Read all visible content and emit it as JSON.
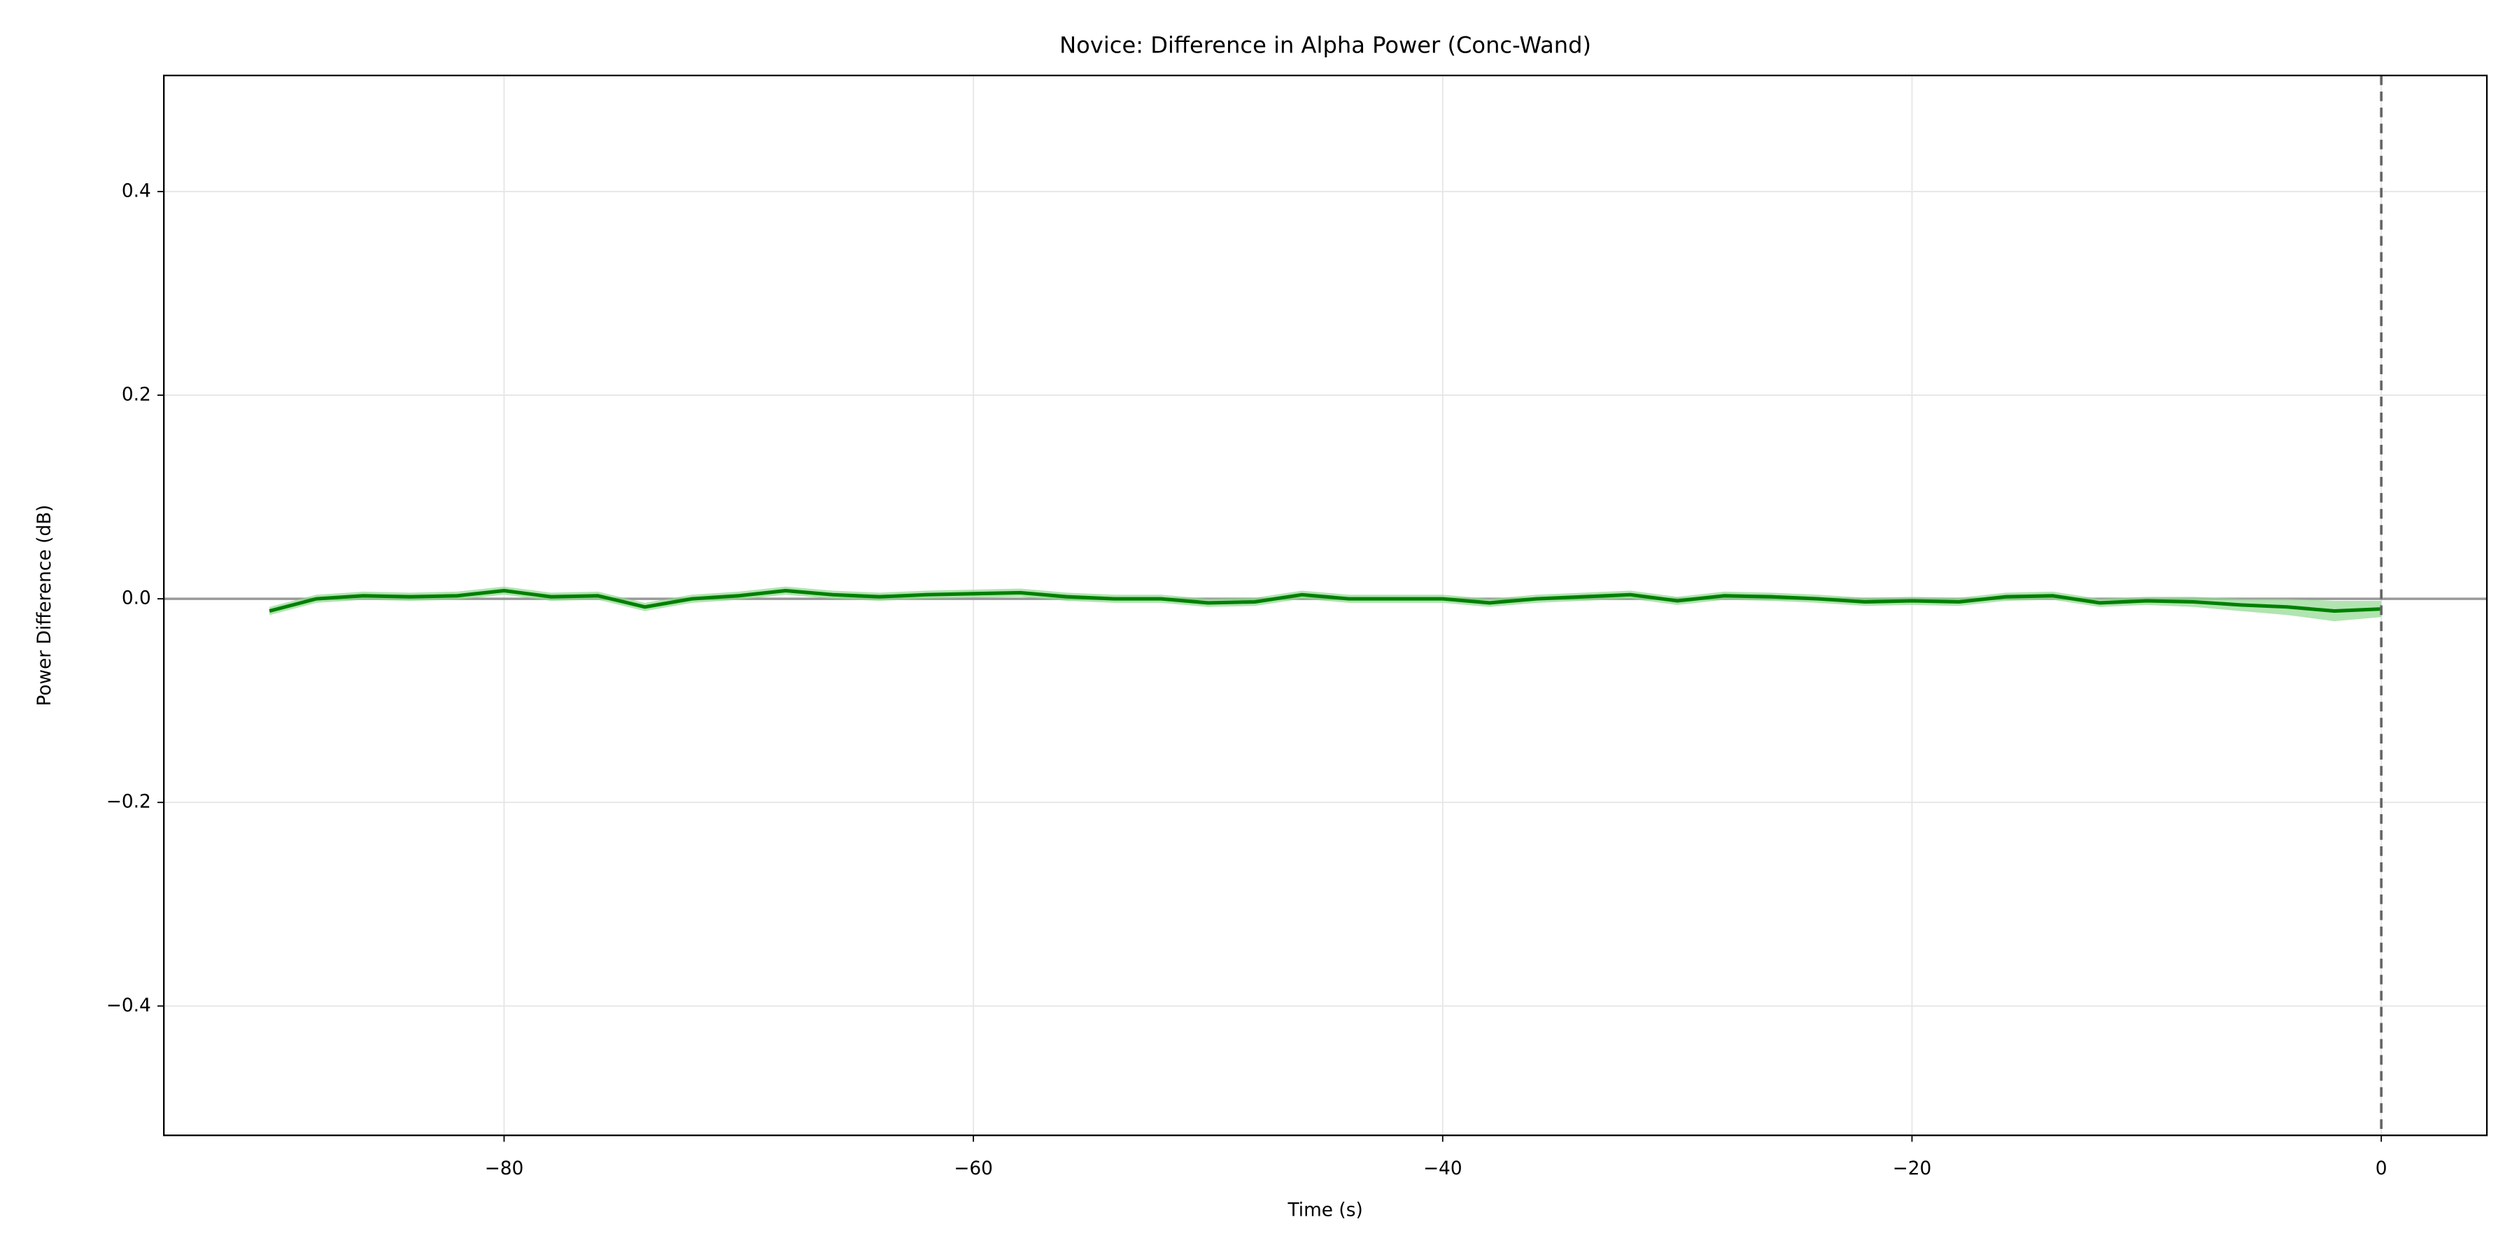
{
  "chart_data": {
    "type": "line",
    "title": "Novice: Difference in Alpha Power (Conc-Wand)",
    "xlabel": "Time (s)",
    "ylabel": "Power Difference (dB)",
    "x": [
      -90,
      -88,
      -86,
      -84,
      -82,
      -80,
      -78,
      -76,
      -74,
      -72,
      -70,
      -68,
      -66,
      -64,
      -62,
      -60,
      -58,
      -56,
      -54,
      -52,
      -50,
      -48,
      -46,
      -44,
      -42,
      -40,
      -38,
      -36,
      -34,
      -32,
      -30,
      -28,
      -26,
      -24,
      -22,
      -20,
      -18,
      -16,
      -14,
      -12,
      -10,
      -8,
      -6,
      -4,
      -2,
      0
    ],
    "series": [
      {
        "color": "#008000",
        "values": [
          -0.012,
          0.0,
          0.003,
          0.002,
          0.003,
          0.008,
          0.002,
          0.003,
          -0.008,
          0.0,
          0.003,
          0.008,
          0.004,
          0.002,
          0.004,
          0.005,
          0.006,
          0.002,
          0.0,
          0.0,
          -0.004,
          -0.003,
          0.004,
          0.0,
          0.0,
          0.0,
          -0.004,
          0.0,
          0.002,
          0.004,
          -0.002,
          0.003,
          0.002,
          0.0,
          -0.003,
          -0.002,
          -0.003,
          0.002,
          0.003,
          -0.004,
          -0.002,
          -0.003,
          -0.006,
          -0.008,
          -0.012,
          -0.01
        ],
        "band_color": "#90d890",
        "lower": [
          -0.016,
          -0.004,
          -0.001,
          -0.002,
          -0.001,
          0.004,
          -0.002,
          -0.001,
          -0.012,
          -0.004,
          -0.001,
          0.004,
          0.0,
          -0.002,
          0.0,
          0.001,
          0.002,
          -0.002,
          -0.004,
          -0.004,
          -0.008,
          -0.007,
          0.0,
          -0.004,
          -0.004,
          -0.004,
          -0.008,
          -0.004,
          -0.002,
          0.0,
          -0.006,
          -0.001,
          -0.002,
          -0.004,
          -0.007,
          -0.006,
          -0.007,
          -0.002,
          -0.001,
          -0.008,
          -0.006,
          -0.008,
          -0.012,
          -0.016,
          -0.022,
          -0.018
        ],
        "upper": [
          -0.008,
          0.004,
          0.007,
          0.006,
          0.007,
          0.012,
          0.006,
          0.007,
          -0.004,
          0.004,
          0.007,
          0.012,
          0.008,
          0.006,
          0.008,
          0.009,
          0.01,
          0.006,
          0.004,
          0.004,
          0.0,
          0.001,
          0.008,
          0.004,
          0.004,
          0.004,
          0.0,
          0.004,
          0.006,
          0.008,
          0.002,
          0.007,
          0.006,
          0.004,
          0.001,
          0.002,
          0.001,
          0.006,
          0.007,
          0.0,
          0.002,
          0.002,
          0.0,
          0.0,
          -0.002,
          -0.002
        ]
      }
    ],
    "xlim": [
      -94.5,
      4.5
    ],
    "ylim": [
      -0.527,
      0.514
    ],
    "xticks": [
      {
        "value": -80,
        "label": "−80"
      },
      {
        "value": -60,
        "label": "−60"
      },
      {
        "value": -40,
        "label": "−40"
      },
      {
        "value": -20,
        "label": "−20"
      },
      0
    ],
    "yticks": [
      {
        "value": -0.4,
        "label": "−0.4"
      },
      {
        "value": -0.2,
        "label": "−0.2"
      },
      {
        "value": 0,
        "label": "0.0"
      },
      0.2,
      0.4
    ],
    "grid": true,
    "hline": 0,
    "vline": 0
  }
}
